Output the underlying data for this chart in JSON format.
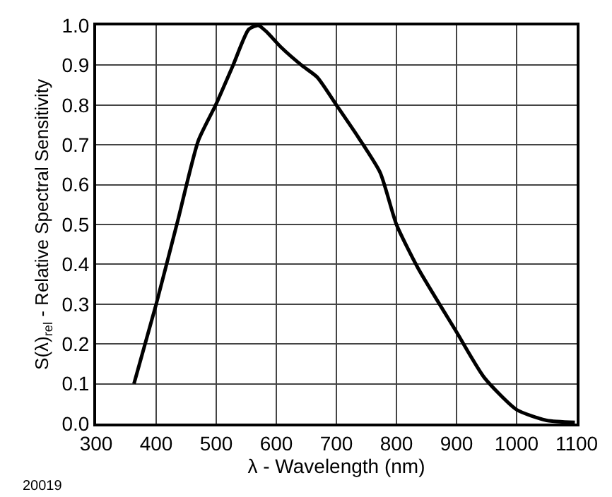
{
  "chart_data": {
    "type": "line",
    "xlabel": "λ - Wavelength (nm)",
    "ylabel": "S(λ)$_{rel}$ - Relative Spectral Sensitivity",
    "x": [
      363,
      400,
      436,
      470,
      499,
      528,
      554,
      570,
      583,
      608,
      642,
      668,
      700,
      736,
      773,
      800,
      836,
      900,
      946,
      1000,
      1050,
      1097
    ],
    "series": [
      {
        "color": "#000000",
        "values": [
          0.1,
          0.3,
          0.51,
          0.71,
          0.8,
          0.9,
          0.99,
          1.0,
          0.985,
          0.945,
          0.9,
          0.87,
          0.8,
          0.72,
          0.63,
          0.5,
          0.39,
          0.23,
          0.116,
          0.035,
          0.008,
          0.003
        ]
      }
    ],
    "xlim": [
      300,
      1100
    ],
    "xticks": [
      300,
      400,
      500,
      600,
      700,
      800,
      900,
      1000,
      1100
    ],
    "ylim": [
      0,
      1.0
    ],
    "yticks": [
      {
        "value": 0,
        "label": "0.0"
      },
      0.1,
      0.2,
      0.3,
      0.4,
      0.5,
      0.6,
      0.7,
      0.8,
      0.9,
      {
        "value": 1.0,
        "label": "1.0"
      }
    ],
    "grid": true,
    "legend": false,
    "marker": "none",
    "line_style": "solid",
    "annotations": [
      "20019"
    ]
  }
}
